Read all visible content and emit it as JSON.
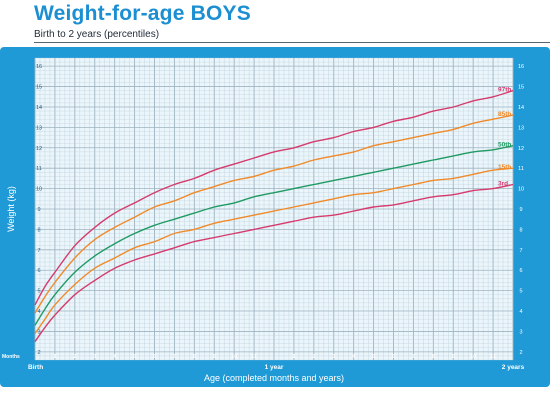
{
  "title": "Weight-for-age BOYS",
  "subtitle": "Birth to 2 years (percentiles)",
  "colors": {
    "frame": "#1f9ad6",
    "plot_bg": "#eaf6fb",
    "grid": "#b9c9d3",
    "p97": "#d63b6e",
    "p85": "#f08a2a",
    "p50": "#1f9a63",
    "p15": "#f08a2a",
    "p3": "#d63b6e"
  },
  "chart_data": {
    "type": "line",
    "xlabel": "Age (completed months and years)",
    "ylabel": "Weight (kg)",
    "xlim": [
      0,
      24
    ],
    "ylim": [
      1.6,
      16.4
    ],
    "grid": true,
    "axis_start_label": "Months",
    "x_ticks": [
      {
        "value": 0,
        "label": "Birth"
      },
      {
        "value": 1,
        "label": "1"
      },
      {
        "value": 2,
        "label": "2"
      },
      {
        "value": 3,
        "label": "3"
      },
      {
        "value": 4,
        "label": "4"
      },
      {
        "value": 5,
        "label": "5"
      },
      {
        "value": 6,
        "label": "6"
      },
      {
        "value": 7,
        "label": "7"
      },
      {
        "value": 8,
        "label": "8"
      },
      {
        "value": 9,
        "label": "9"
      },
      {
        "value": 10,
        "label": "10"
      },
      {
        "value": 11,
        "label": "11"
      },
      {
        "value": 12,
        "label": "1 year"
      },
      {
        "value": 13,
        "label": "1"
      },
      {
        "value": 14,
        "label": "2"
      },
      {
        "value": 15,
        "label": "3"
      },
      {
        "value": 16,
        "label": "4"
      },
      {
        "value": 17,
        "label": "5"
      },
      {
        "value": 18,
        "label": "6"
      },
      {
        "value": 19,
        "label": "7"
      },
      {
        "value": 20,
        "label": "8"
      },
      {
        "value": 21,
        "label": "9"
      },
      {
        "value": 22,
        "label": "10"
      },
      {
        "value": 23,
        "label": "11"
      },
      {
        "value": 24,
        "label": "2 years"
      }
    ],
    "y_ticks": [
      2,
      3,
      4,
      5,
      6,
      7,
      8,
      9,
      10,
      11,
      12,
      13,
      14,
      15,
      16
    ],
    "x": [
      0,
      0.5,
      1,
      2,
      3,
      4,
      5,
      6,
      7,
      8,
      9,
      10,
      11,
      12,
      13,
      14,
      15,
      16,
      17,
      18,
      19,
      20,
      21,
      22,
      23,
      24
    ],
    "series": [
      {
        "name": "97th",
        "color_key": "p97",
        "values": [
          4.3,
          5.2,
          5.9,
          7.2,
          8.1,
          8.8,
          9.3,
          9.8,
          10.2,
          10.5,
          10.9,
          11.2,
          11.5,
          11.8,
          12.0,
          12.3,
          12.5,
          12.8,
          13.0,
          13.3,
          13.5,
          13.8,
          14.0,
          14.3,
          14.5,
          14.8
        ]
      },
      {
        "name": "85th",
        "color_key": "p85",
        "values": [
          3.9,
          4.7,
          5.4,
          6.6,
          7.5,
          8.1,
          8.6,
          9.1,
          9.4,
          9.8,
          10.1,
          10.4,
          10.6,
          10.9,
          11.1,
          11.4,
          11.6,
          11.8,
          12.1,
          12.3,
          12.5,
          12.7,
          12.9,
          13.2,
          13.4,
          13.6
        ]
      },
      {
        "name": "50th",
        "color_key": "p50",
        "values": [
          3.3,
          4.1,
          4.8,
          5.9,
          6.7,
          7.3,
          7.8,
          8.2,
          8.5,
          8.8,
          9.1,
          9.3,
          9.6,
          9.8,
          10.0,
          10.2,
          10.4,
          10.6,
          10.8,
          11.0,
          11.2,
          11.4,
          11.6,
          11.8,
          11.9,
          12.1
        ]
      },
      {
        "name": "15th",
        "color_key": "p15",
        "values": [
          2.9,
          3.6,
          4.3,
          5.3,
          6.1,
          6.6,
          7.1,
          7.4,
          7.8,
          8.0,
          8.3,
          8.5,
          8.7,
          8.9,
          9.1,
          9.3,
          9.5,
          9.7,
          9.8,
          10.0,
          10.2,
          10.4,
          10.5,
          10.7,
          10.9,
          11.0
        ]
      },
      {
        "name": "3rd",
        "color_key": "p3",
        "values": [
          2.5,
          3.2,
          3.8,
          4.8,
          5.5,
          6.1,
          6.5,
          6.8,
          7.1,
          7.4,
          7.6,
          7.8,
          8.0,
          8.2,
          8.4,
          8.6,
          8.7,
          8.9,
          9.1,
          9.2,
          9.4,
          9.6,
          9.7,
          9.9,
          10.0,
          10.2
        ]
      }
    ]
  }
}
